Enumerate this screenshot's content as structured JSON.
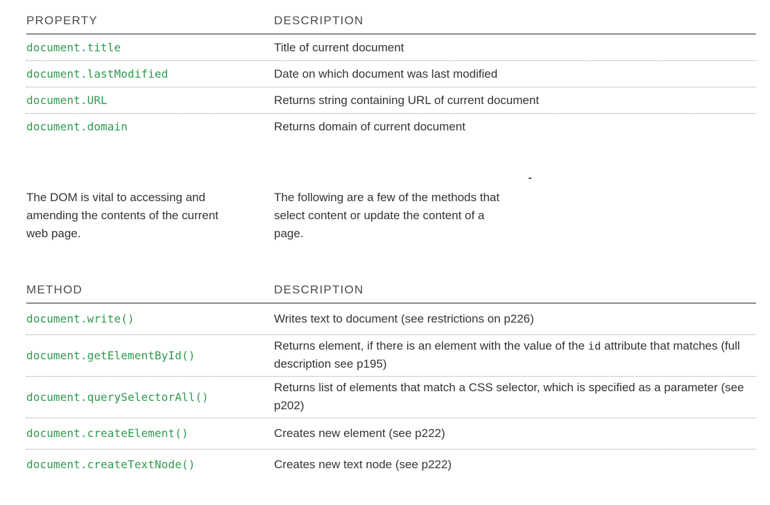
{
  "properties_table": {
    "headers": {
      "property": "PROPERTY",
      "description": "DESCRIPTION"
    },
    "rows": [
      {
        "name": "document.title",
        "description": "Title of current document"
      },
      {
        "name": "document.lastModified",
        "description": "Date on which document was last modified"
      },
      {
        "name": "document.URL",
        "description": "Returns string containing URL of current document"
      },
      {
        "name": "document.domain",
        "description": "Returns domain of current document"
      }
    ]
  },
  "intro": {
    "left": "The DOM is vital to accessing and amending the contents of the current web page.",
    "right": "The following are a few of the methods that select content or update the content of a page."
  },
  "methods_table": {
    "headers": {
      "method": "METHOD",
      "description": "DESCRIPTION"
    },
    "rows": [
      {
        "name": "document.write()",
        "description": "Writes text to document (see restrictions on p226)"
      },
      {
        "name": "document.getElementById()",
        "description_before": "Returns element, if there is an element with the value of the ",
        "description_code": "id",
        "description_after": " attribute that matches (full description see p195)"
      },
      {
        "name": "document.querySelectorAll()",
        "description": "Returns list of elements that match a CSS selector, which is specified as a parameter (see p202)"
      },
      {
        "name": "document.createElement()",
        "description": "Creates new element (see p222)"
      },
      {
        "name": "document.createTextNode()",
        "description": "Creates new text node (see p222)"
      }
    ]
  }
}
